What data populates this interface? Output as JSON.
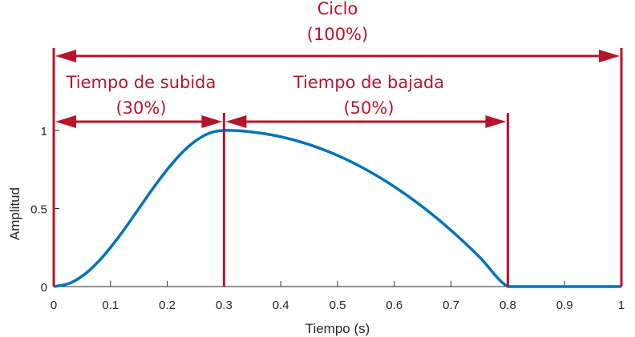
{
  "chart_data": {
    "type": "line",
    "xlabel": "Tiempo (s)",
    "ylabel": "Amplitud",
    "xlim": [
      0,
      1
    ],
    "ylim": [
      0,
      1
    ],
    "x_ticks": [
      "0",
      "0.1",
      "0.2",
      "0.3",
      "0.4",
      "0.5",
      "0.6",
      "0.7",
      "0.8",
      "0.9",
      "1"
    ],
    "y_ticks": [
      "0",
      "0.5",
      "1"
    ],
    "series": [
      {
        "x": [
          0,
          0.03,
          0.06,
          0.09,
          0.12,
          0.15,
          0.18,
          0.21,
          0.24,
          0.27,
          0.3,
          0.35,
          0.4,
          0.45,
          0.5,
          0.55,
          0.6,
          0.65,
          0.7,
          0.75,
          0.8,
          0.85,
          0.9,
          0.95,
          1.0
        ],
        "y": [
          0,
          0.024,
          0.095,
          0.206,
          0.345,
          0.5,
          0.655,
          0.794,
          0.905,
          0.976,
          1.0,
          0.99,
          0.96,
          0.91,
          0.84,
          0.75,
          0.64,
          0.51,
          0.36,
          0.19,
          0,
          0,
          0,
          0,
          0
        ],
        "color": "#0072bd"
      }
    ],
    "annotations": {
      "ciclo": {
        "label": "Ciclo",
        "percent": "(100%)",
        "x_start": 0,
        "x_end": 1
      },
      "subida": {
        "label": "Tiempo de subida",
        "percent": "(30%)",
        "x_start": 0,
        "x_end": 0.3
      },
      "bajada": {
        "label": "Tiempo de bajada",
        "percent": "(50%)",
        "x_start": 0.3,
        "x_end": 0.8
      }
    },
    "annotation_color": "#b5152b",
    "grid": false
  }
}
